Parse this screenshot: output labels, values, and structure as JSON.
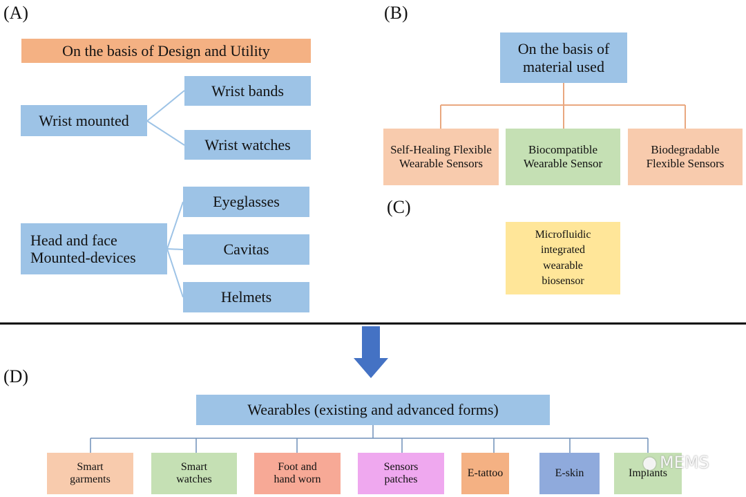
{
  "panel_a": {
    "label": "(A)",
    "title": "On the basis of Design and Utility",
    "groups": [
      {
        "label": "Wrist mounted",
        "items": [
          "Wrist bands",
          "Wrist watches"
        ]
      },
      {
        "label": "Head and face Mounted-devices",
        "items": [
          "Eyeglasses",
          "Cavitas",
          "Helmets"
        ]
      }
    ]
  },
  "panel_b": {
    "label": "(B)",
    "title": "On the basis of material used",
    "items": [
      "Self-Healing Flexible Wearable Sensors",
      "Biocompatible Wearable Sensor",
      "Biodegradable Flexible Sensors"
    ]
  },
  "panel_c": {
    "label": "(C)",
    "item": "Microfluidic integrated wearable biosensor"
  },
  "panel_d": {
    "label": "(D)",
    "title": "Wearables (existing and advanced forms)",
    "items": [
      "Smart garments",
      "Smart watches",
      "Foot and hand worn",
      "Sensors patches",
      "E-tattoo",
      "E-skin",
      "Implants"
    ]
  },
  "watermark": "MEMS",
  "colors": {
    "blue": "#9dc3e6",
    "orange": "#f4b183",
    "peach": "#f8cbad",
    "green": "#c5e0b4",
    "yellow": "#ffe699",
    "salmon": "#f7a996",
    "pink": "#efa8ef",
    "eskin": "#8faadc",
    "arrow": "#4472c4"
  }
}
